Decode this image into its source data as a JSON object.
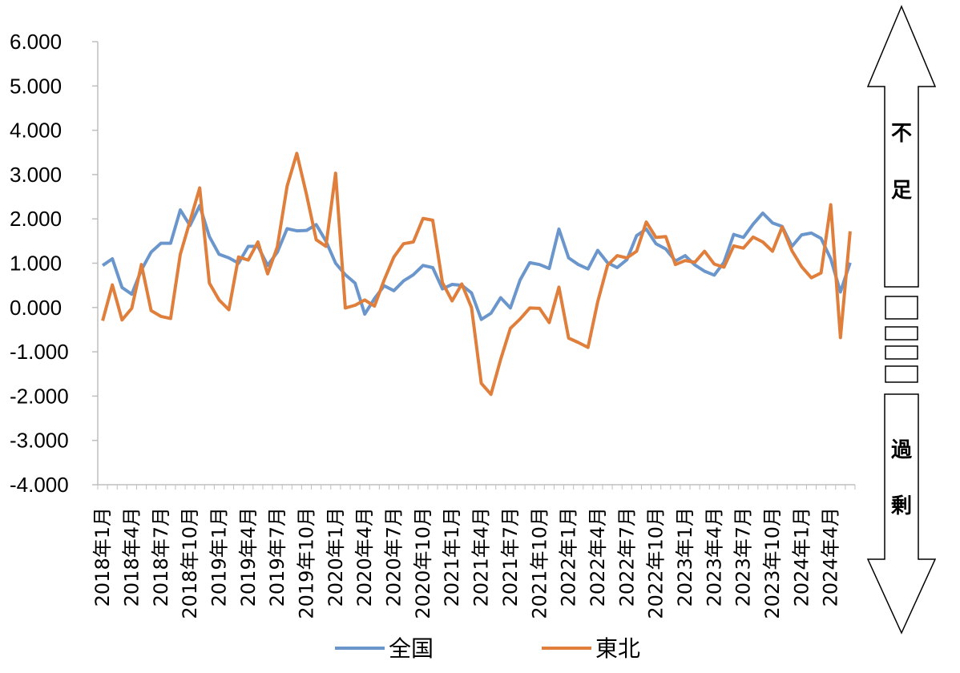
{
  "chart_data": {
    "type": "line",
    "ylim": [
      -4,
      6
    ],
    "yticks": [
      "6.000",
      "5.000",
      "4.000",
      "3.000",
      "2.000",
      "1.000",
      "0.000",
      "-1.000",
      "-2.000",
      "-3.000",
      "-4.000"
    ],
    "x_labels": [
      "2018年1月",
      "2018年4月",
      "2018年7月",
      "2018年10月",
      "2019年1月",
      "2019年4月",
      "2019年7月",
      "2019年10月",
      "2020年1月",
      "2020年4月",
      "2020年7月",
      "2020年10月",
      "2021年1月",
      "2021年4月",
      "2021年7月",
      "2021年10月",
      "2022年1月",
      "2022年4月",
      "2022年7月",
      "2022年10月",
      "2023年1月",
      "2023年4月",
      "2023年7月",
      "2023年10月",
      "2024年1月",
      "2024年4月"
    ],
    "x": [
      "2018-01",
      "2018-02",
      "2018-03",
      "2018-04",
      "2018-05",
      "2018-06",
      "2018-07",
      "2018-08",
      "2018-09",
      "2018-10",
      "2018-11",
      "2018-12",
      "2019-01",
      "2019-02",
      "2019-03",
      "2019-04",
      "2019-05",
      "2019-06",
      "2019-07",
      "2019-08",
      "2019-09",
      "2019-10",
      "2019-11",
      "2019-12",
      "2020-01",
      "2020-02",
      "2020-03",
      "2020-04",
      "2020-05",
      "2020-06",
      "2020-07",
      "2020-08",
      "2020-09",
      "2020-10",
      "2020-11",
      "2020-12",
      "2021-01",
      "2021-02",
      "2021-03",
      "2021-04",
      "2021-05",
      "2021-06",
      "2021-07",
      "2021-08",
      "2021-09",
      "2021-10",
      "2021-11",
      "2021-12",
      "2022-01",
      "2022-02",
      "2022-03",
      "2022-04",
      "2022-05",
      "2022-06",
      "2022-07",
      "2022-08",
      "2022-09",
      "2022-10",
      "2022-11",
      "2022-12",
      "2023-01",
      "2023-02",
      "2023-03",
      "2023-04",
      "2023-05",
      "2023-06",
      "2023-07",
      "2023-08",
      "2023-09",
      "2023-10",
      "2023-11",
      "2023-12",
      "2024-01",
      "2024-02",
      "2024-03",
      "2024-04",
      "2024-05",
      "2024-06"
    ],
    "series": [
      {
        "name": "全国",
        "color": "#6b96cc",
        "values": [
          0.95,
          1.1,
          0.45,
          0.3,
          0.85,
          1.25,
          1.45,
          1.45,
          2.2,
          1.85,
          2.3,
          1.6,
          1.2,
          1.12,
          1.0,
          1.38,
          1.38,
          0.95,
          1.25,
          1.78,
          1.73,
          1.74,
          1.87,
          1.5,
          1.0,
          0.74,
          0.55,
          -0.15,
          0.2,
          0.49,
          0.38,
          0.6,
          0.74,
          0.95,
          0.9,
          0.42,
          0.52,
          0.5,
          0.33,
          -0.27,
          -0.13,
          0.22,
          -0.01,
          0.62,
          1.01,
          0.97,
          0.88,
          1.77,
          1.12,
          0.97,
          0.87,
          1.29,
          1.01,
          0.9,
          1.08,
          1.62,
          1.77,
          1.44,
          1.32,
          1.05,
          1.17,
          0.96,
          0.82,
          0.73,
          1.02,
          1.65,
          1.58,
          1.88,
          2.13,
          1.91,
          1.83,
          1.38,
          1.64,
          1.68,
          1.56,
          1.1,
          0.35,
          1.01
        ]
      },
      {
        "name": "東北",
        "color": "#e07e3c",
        "values": [
          -0.3,
          0.51,
          -0.28,
          -0.02,
          0.97,
          -0.07,
          -0.2,
          -0.25,
          1.2,
          1.95,
          2.7,
          0.55,
          0.17,
          -0.05,
          1.14,
          1.07,
          1.48,
          0.76,
          1.37,
          2.74,
          3.48,
          2.55,
          1.53,
          1.38,
          3.03,
          -0.01,
          0.05,
          0.17,
          0.03,
          0.62,
          1.14,
          1.44,
          1.48,
          2.01,
          1.97,
          0.56,
          0.15,
          0.53,
          0.0,
          -1.71,
          -1.96,
          -1.17,
          -0.47,
          -0.26,
          -0.01,
          -0.02,
          -0.34,
          0.46,
          -0.69,
          -0.79,
          -0.9,
          0.13,
          0.95,
          1.17,
          1.12,
          1.27,
          1.93,
          1.58,
          1.6,
          0.97,
          1.06,
          1.02,
          1.27,
          0.98,
          0.91,
          1.39,
          1.34,
          1.59,
          1.48,
          1.27,
          1.82,
          1.28,
          0.92,
          0.67,
          0.78,
          2.32,
          -0.68,
          1.72
        ]
      }
    ],
    "grid": false,
    "legend": "bottom"
  },
  "side_arrow": {
    "label_up": [
      "不",
      "足"
    ],
    "label_down": [
      "過",
      "剰"
    ]
  }
}
